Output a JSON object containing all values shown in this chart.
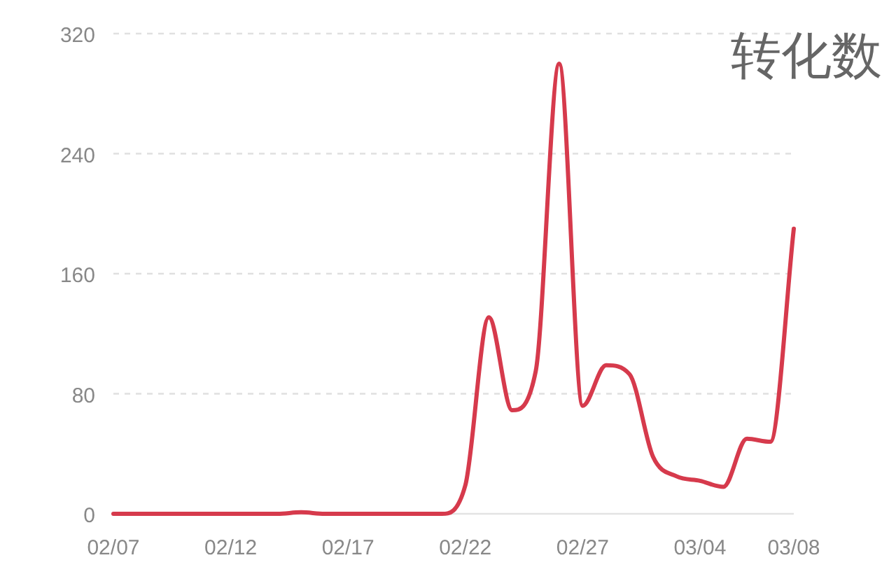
{
  "chart_data": {
    "type": "line",
    "title": "转化数",
    "x": [
      "--02-07",
      "--02-08",
      "--02-09",
      "--02-10",
      "--02-11",
      "--02-12",
      "--02-13",
      "--02-14",
      "--02-15",
      "--02-16",
      "--02-17",
      "--02-18",
      "--02-19",
      "--02-20",
      "--02-21",
      "--02-22",
      "--02-23",
      "--02-24",
      "--02-25",
      "--02-26",
      "--02-27",
      "--02-28",
      "--03-01",
      "--03-02",
      "--03-03",
      "--03-04",
      "--03-05",
      "--03-06",
      "--03-07",
      "--03-08"
    ],
    "series": [
      {
        "color": "#d63a4c",
        "values": [
          0,
          0,
          0,
          0,
          0,
          0,
          0,
          0,
          1,
          0,
          0,
          0,
          0,
          0,
          0,
          19,
          131,
          69,
          95,
          300,
          72,
          99,
          93,
          38,
          25,
          22,
          18,
          50,
          48,
          190
        ]
      }
    ],
    "xlim": [
      "--02-07",
      "--03-08"
    ],
    "xticks": [
      {
        "value": "--02-07",
        "label": "02/07"
      },
      {
        "value": "--02-12",
        "label": "02/12"
      },
      {
        "value": "--02-17",
        "label": "02/17"
      },
      {
        "value": "--02-22",
        "label": "02/22"
      },
      {
        "value": "--02-27",
        "label": "02/27"
      },
      {
        "value": "--03-04",
        "label": "03/04"
      },
      {
        "value": "--03-08",
        "label": "03/08"
      }
    ],
    "ylim": [
      0,
      320
    ],
    "yticks": [
      0,
      80,
      160,
      240,
      320
    ],
    "grid": "y"
  }
}
